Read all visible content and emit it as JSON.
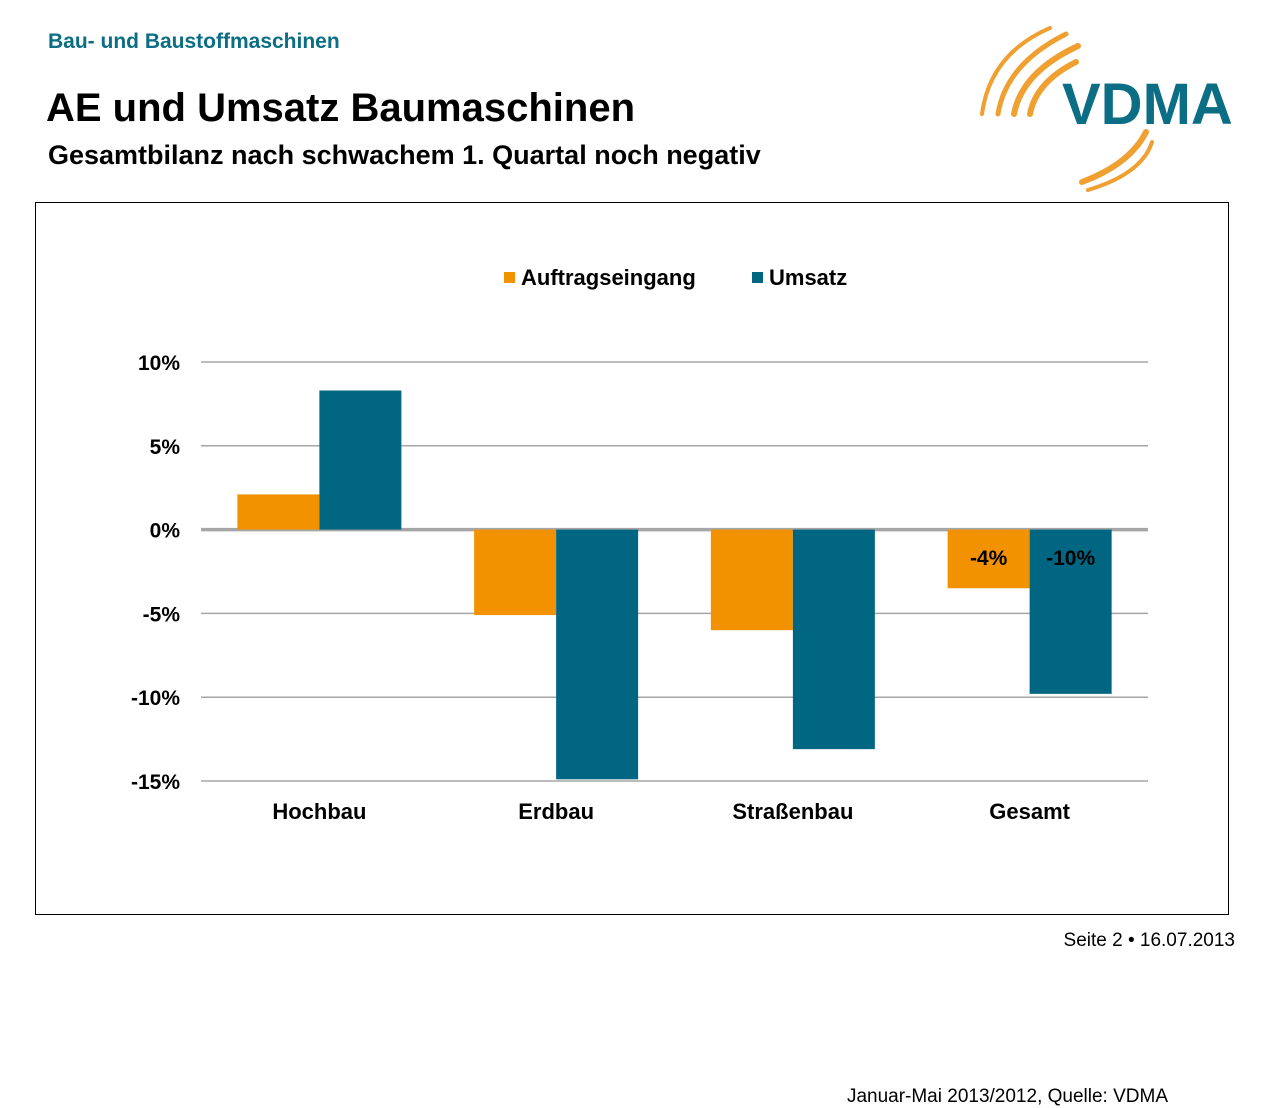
{
  "header": {
    "section": "Bau- und Baustoffmaschinen",
    "title": "AE und Umsatz Baumaschinen",
    "subtitle": "Gesamtbilanz nach schwachem 1. Quartal noch negativ"
  },
  "logo": {
    "text": "VDMA",
    "colors": {
      "arcs": "#f0a030",
      "text": "#0b6e85"
    }
  },
  "colors": {
    "orange": "#f39200",
    "teal": "#006682",
    "grid": "#a6a6a6",
    "axis": "#a6a6a6"
  },
  "chart_data": {
    "type": "bar",
    "categories": [
      "Hochbau",
      "Erdbau",
      "Straßenbau",
      "Gesamt"
    ],
    "series": [
      {
        "name": "Auftragseingang",
        "color": "#f39200",
        "values": [
          2.1,
          -5.1,
          -6.0,
          -3.5
        ]
      },
      {
        "name": "Umsatz",
        "color": "#006682",
        "values": [
          8.3,
          -14.9,
          -13.1,
          -9.8
        ]
      }
    ],
    "data_labels": [
      {
        "category": "Gesamt",
        "series": "Auftragseingang",
        "text": "-4%"
      },
      {
        "category": "Gesamt",
        "series": "Umsatz",
        "text": "-10%"
      }
    ],
    "yticks": [
      "10%",
      "5%",
      "0%",
      "-5%",
      "-10%",
      "-15%"
    ],
    "ytick_values": [
      10,
      5,
      0,
      -5,
      -10,
      -15
    ],
    "ylim": [
      -15,
      10
    ],
    "legend": "top-center",
    "grid": true
  },
  "source": "Januar-Mai 2013/2012, Quelle: VDMA",
  "footer": "Seite 2 • 16.07.2013"
}
